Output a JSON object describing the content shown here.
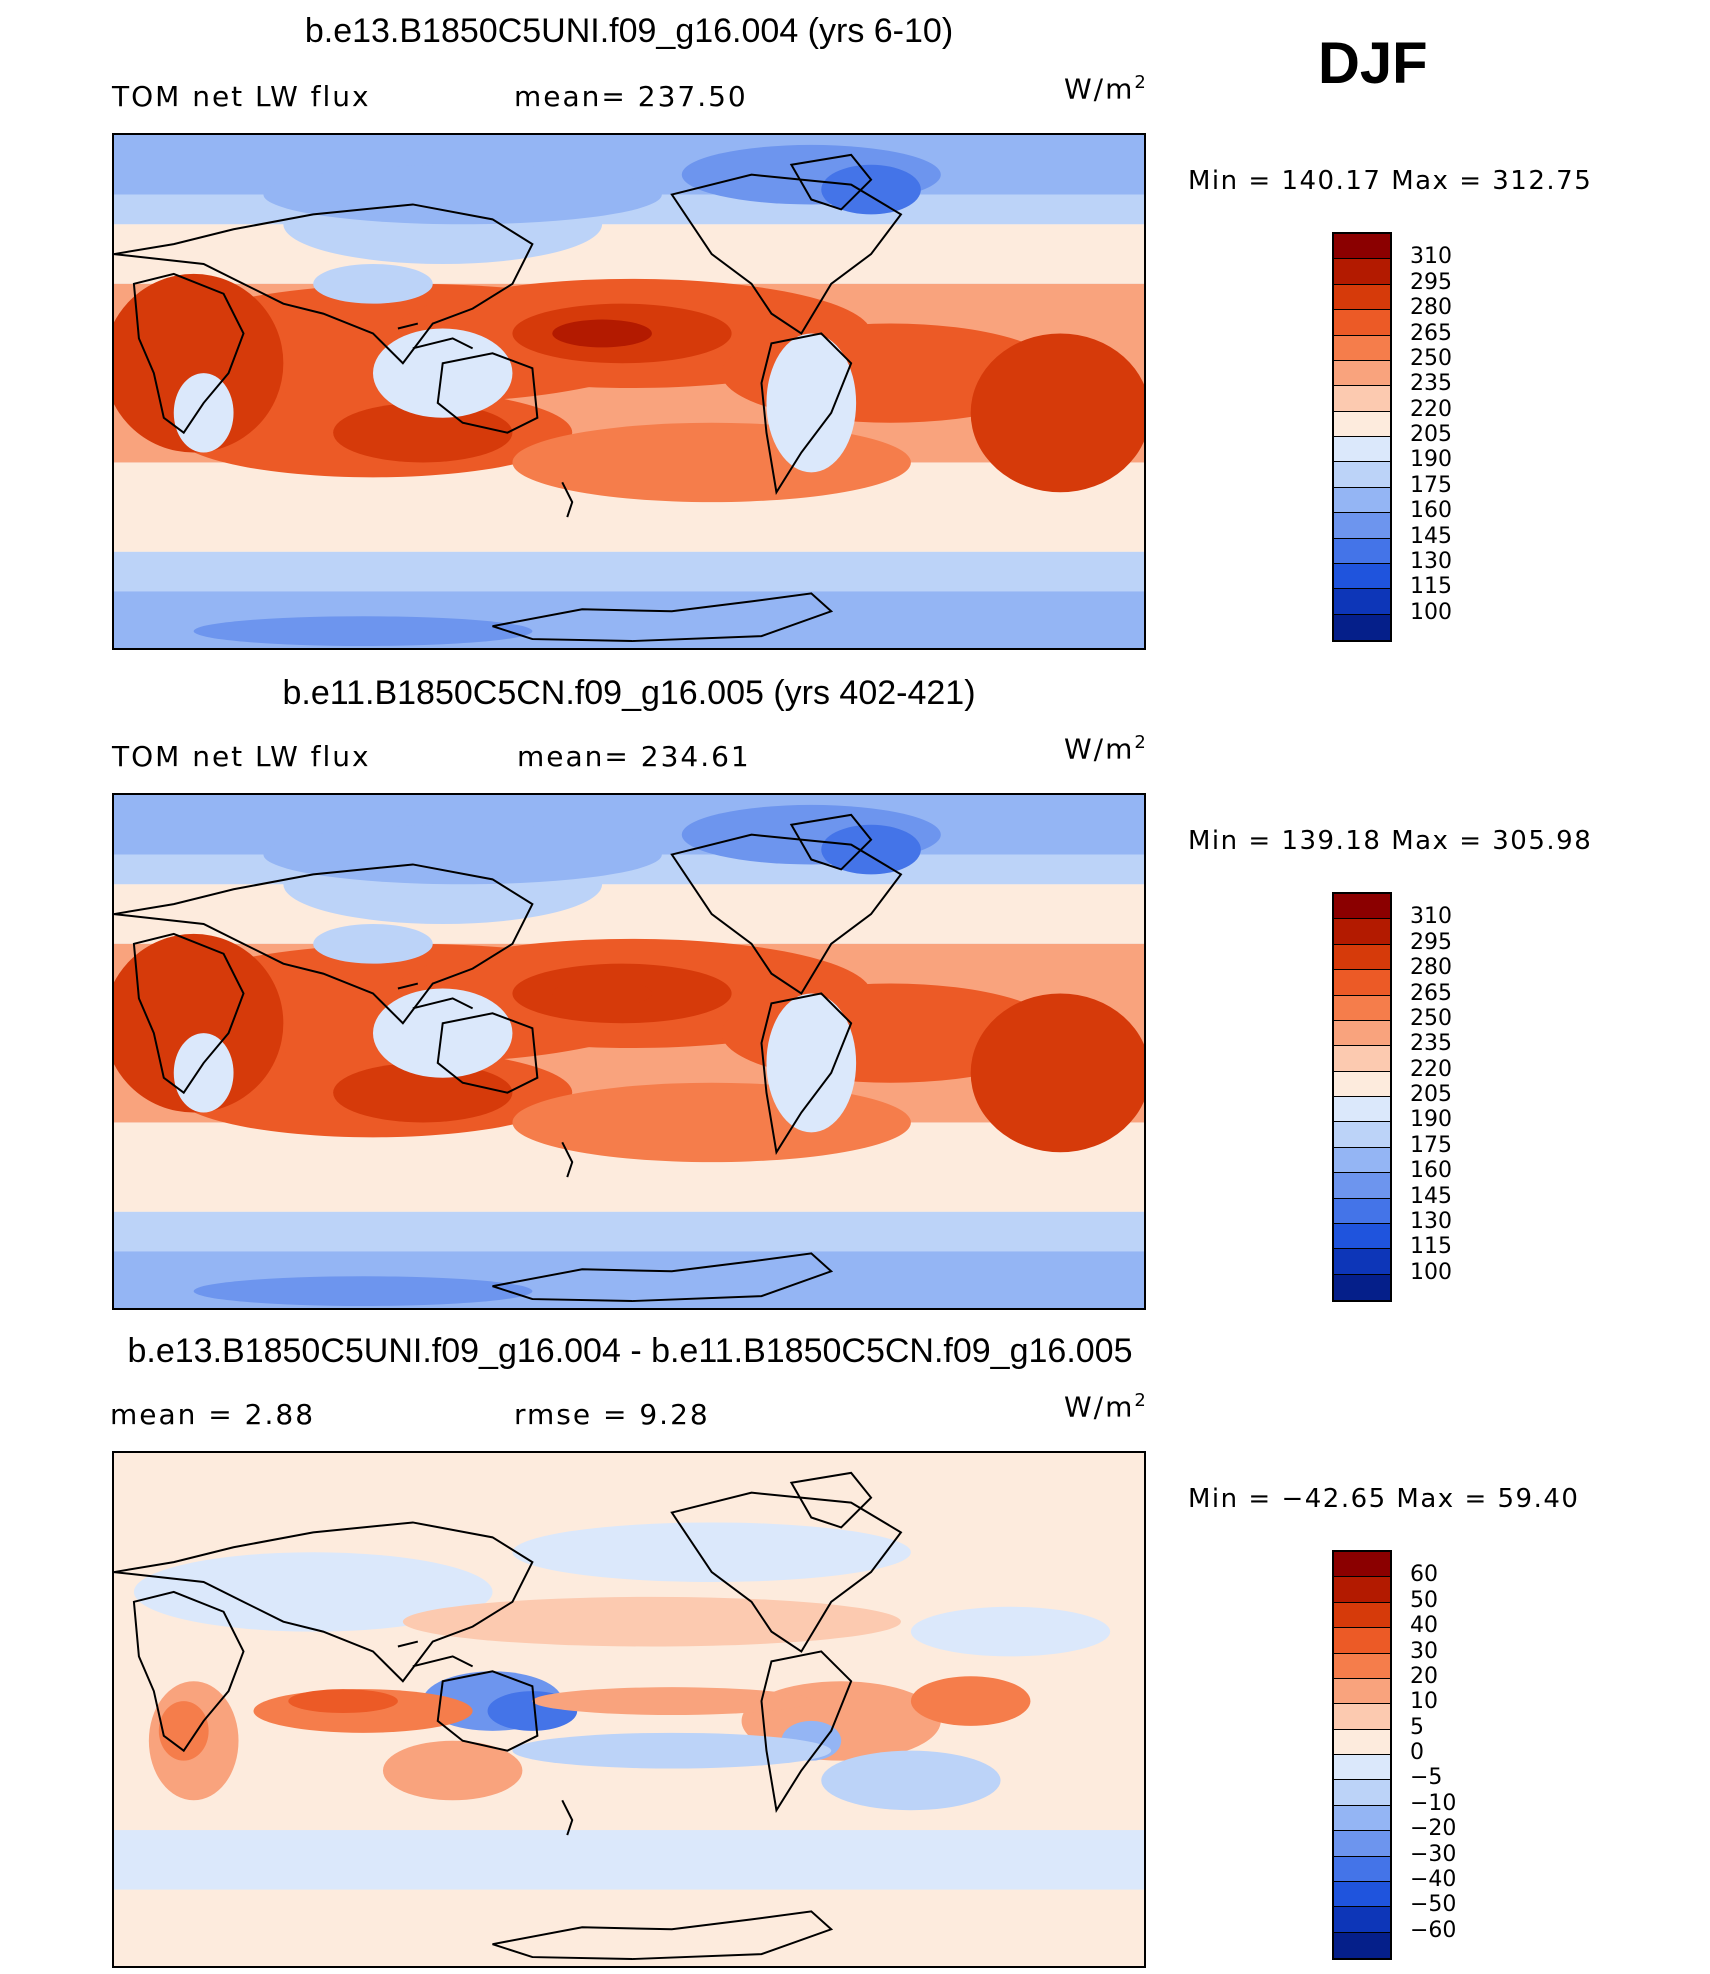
{
  "season": "DJF",
  "panels": [
    {
      "title": "b.e13.B1850C5UNI.f09_g16.004 (yrs 6-10)",
      "left_label": "TOM  net  LW  flux",
      "center_label": "mean=  237.50",
      "units": "W/m",
      "units_sup": "2",
      "minmax": "Min  =  140.17  Max  =  312.75"
    },
    {
      "title": "b.e11.B1850C5CN.f09_g16.005 (yrs 402-421)",
      "left_label": "TOM  net  LW  flux",
      "center_label": "mean=  234.61",
      "units": "W/m",
      "units_sup": "2",
      "minmax": "Min  =  139.18  Max  =  305.98"
    },
    {
      "title": "b.e13.B1850C5UNI.f09_g16.004 - b.e11.B1850C5CN.f09_g16.005",
      "left_label": "mean  =      2.88",
      "center_label": "rmse  =      9.28",
      "units": "W/m",
      "units_sup": "2",
      "minmax": "Min  =  −42.65  Max  =     59.40"
    }
  ],
  "chart_data": [
    {
      "type": "heatmap",
      "title": "b.e13.B1850C5UNI.f09_g16.004 (yrs 6-10)",
      "variable": "TOM net LW flux",
      "units": "W/m2",
      "mean": 237.5,
      "min": 140.17,
      "max": 312.75,
      "colorbar_levels": [
        310,
        295,
        280,
        265,
        250,
        235,
        220,
        205,
        190,
        175,
        160,
        145,
        130,
        115,
        100
      ],
      "colorbar_colors": [
        "#8b0000",
        "#b31a00",
        "#d63a0a",
        "#ec5a26",
        "#f57d4b",
        "#f9a37d",
        "#fccab0",
        "#fdebdd",
        "#dbe8fb",
        "#bcd3f8",
        "#94b5f4",
        "#6d95ee",
        "#4474e8",
        "#1f54dd",
        "#0d36b8",
        "#051f8a"
      ]
    },
    {
      "type": "heatmap",
      "title": "b.e11.B1850C5CN.f09_g16.005 (yrs 402-421)",
      "variable": "TOM net LW flux",
      "units": "W/m2",
      "mean": 234.61,
      "min": 139.18,
      "max": 305.98,
      "colorbar_levels": [
        310,
        295,
        280,
        265,
        250,
        235,
        220,
        205,
        190,
        175,
        160,
        145,
        130,
        115,
        100
      ],
      "colorbar_colors": [
        "#8b0000",
        "#b31a00",
        "#d63a0a",
        "#ec5a26",
        "#f57d4b",
        "#f9a37d",
        "#fccab0",
        "#fdebdd",
        "#dbe8fb",
        "#bcd3f8",
        "#94b5f4",
        "#6d95ee",
        "#4474e8",
        "#1f54dd",
        "#0d36b8",
        "#051f8a"
      ]
    },
    {
      "type": "heatmap",
      "title": "b.e13.B1850C5UNI.f09_g16.004 - b.e11.B1850C5CN.f09_g16.005",
      "units": "W/m2",
      "mean": 2.88,
      "rmse": 9.28,
      "min": -42.65,
      "max": 59.4,
      "colorbar_levels": [
        "60",
        "50",
        "40",
        "30",
        "20",
        "10",
        "5",
        "0",
        "−5",
        "−10",
        "−20",
        "−30",
        "−40",
        "−50",
        "−60"
      ],
      "colorbar_colors": [
        "#8b0000",
        "#b31a00",
        "#d63a0a",
        "#ec5a26",
        "#f57d4b",
        "#f9a37d",
        "#fccab0",
        "#fdebdd",
        "#dbe8fb",
        "#bcd3f8",
        "#94b5f4",
        "#6d95ee",
        "#4474e8",
        "#1f54dd",
        "#0d36b8",
        "#051f8a"
      ]
    }
  ]
}
